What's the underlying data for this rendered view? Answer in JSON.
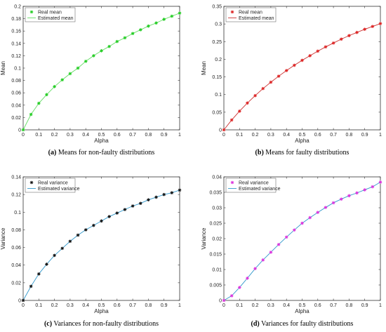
{
  "figure": {
    "panels": [
      {
        "caption_id": "(a)",
        "caption_text": "Means for non-faulty distributions",
        "legend": [
          "Real mean",
          "Estimated mean"
        ],
        "xlabel": "Alpha",
        "ylabel": "Mean",
        "marker_color": "#22cc22",
        "line_color": "#66dd66"
      },
      {
        "caption_id": "(b)",
        "caption_text": "Means for faulty distributions",
        "legend": [
          "Real mean",
          "Estimated mean"
        ],
        "xlabel": "Alpha",
        "ylabel": "Mean",
        "marker_color": "#dd2222",
        "line_color": "#cc3333"
      },
      {
        "caption_id": "(c)",
        "caption_text": "Variances for non-faulty distributions",
        "legend": [
          "Real variance",
          "Estimated variance"
        ],
        "xlabel": "Alpha",
        "ylabel": "Variance",
        "marker_color": "#111111",
        "line_color": "#3399cc"
      },
      {
        "caption_id": "(d)",
        "caption_text": "Variances for faulty distributions",
        "legend": [
          "Real variance",
          "Estimated variance"
        ],
        "xlabel": "Alpha",
        "ylabel": "Variance",
        "marker_color": "#dd33dd",
        "line_color": "#3399cc"
      }
    ]
  },
  "chart_data": [
    {
      "type": "line",
      "x": [
        0,
        0.05,
        0.1,
        0.15,
        0.2,
        0.25,
        0.3,
        0.35,
        0.4,
        0.45,
        0.5,
        0.55,
        0.6,
        0.65,
        0.7,
        0.75,
        0.8,
        0.85,
        0.9,
        0.95,
        1
      ],
      "series": [
        {
          "name": "Real mean",
          "style": "markers",
          "values": [
            0,
            0.025,
            0.043,
            0.057,
            0.07,
            0.081,
            0.091,
            0.1,
            0.111,
            0.12,
            0.128,
            0.135,
            0.143,
            0.149,
            0.156,
            0.162,
            0.168,
            0.173,
            0.179,
            0.184,
            0.189
          ]
        },
        {
          "name": "Estimated mean",
          "style": "line",
          "values": [
            0,
            0.025,
            0.043,
            0.057,
            0.07,
            0.081,
            0.091,
            0.1,
            0.111,
            0.12,
            0.128,
            0.135,
            0.143,
            0.149,
            0.156,
            0.162,
            0.168,
            0.173,
            0.179,
            0.184,
            0.189
          ]
        }
      ],
      "xlim": [
        0,
        1
      ],
      "ylim": [
        0,
        0.2
      ],
      "xticks": [
        0,
        0.1,
        0.2,
        0.3,
        0.4,
        0.5,
        0.6,
        0.7,
        0.8,
        0.9,
        1
      ],
      "yticks": [
        0,
        0.02,
        0.04,
        0.06,
        0.08,
        0.1,
        0.12,
        0.14,
        0.16,
        0.18,
        0.2
      ],
      "xlabel": "Alpha",
      "ylabel": "Mean",
      "legend_position": "top-left",
      "grid": false
    },
    {
      "type": "line",
      "x": [
        0,
        0.05,
        0.1,
        0.15,
        0.2,
        0.25,
        0.3,
        0.35,
        0.4,
        0.45,
        0.5,
        0.55,
        0.6,
        0.65,
        0.7,
        0.75,
        0.8,
        0.85,
        0.9,
        0.95,
        1
      ],
      "series": [
        {
          "name": "Real mean",
          "style": "markers",
          "values": [
            0,
            0.028,
            0.053,
            0.076,
            0.097,
            0.117,
            0.135,
            0.152,
            0.168,
            0.183,
            0.197,
            0.21,
            0.223,
            0.235,
            0.246,
            0.257,
            0.267,
            0.276,
            0.285,
            0.293,
            0.301
          ]
        },
        {
          "name": "Estimated mean",
          "style": "line",
          "values": [
            0,
            0.028,
            0.053,
            0.076,
            0.097,
            0.117,
            0.135,
            0.152,
            0.168,
            0.183,
            0.197,
            0.21,
            0.223,
            0.235,
            0.246,
            0.257,
            0.267,
            0.276,
            0.285,
            0.293,
            0.301
          ]
        }
      ],
      "xlim": [
        0,
        1
      ],
      "ylim": [
        0,
        0.35
      ],
      "xticks": [
        0,
        0.1,
        0.2,
        0.3,
        0.4,
        0.5,
        0.6,
        0.7,
        0.8,
        0.9,
        1
      ],
      "yticks": [
        0,
        0.05,
        0.1,
        0.15,
        0.2,
        0.25,
        0.3,
        0.35
      ],
      "xlabel": "Alpha",
      "ylabel": "Mean",
      "legend_position": "top-left",
      "grid": false
    },
    {
      "type": "line",
      "x": [
        0,
        0.05,
        0.1,
        0.15,
        0.2,
        0.25,
        0.3,
        0.35,
        0.4,
        0.45,
        0.5,
        0.55,
        0.6,
        0.65,
        0.7,
        0.75,
        0.8,
        0.85,
        0.9,
        0.95,
        1
      ],
      "series": [
        {
          "name": "Real variance",
          "style": "markers",
          "values": [
            0,
            0.016,
            0.03,
            0.041,
            0.051,
            0.059,
            0.067,
            0.074,
            0.08,
            0.085,
            0.09,
            0.095,
            0.099,
            0.103,
            0.107,
            0.11,
            0.114,
            0.117,
            0.12,
            0.122,
            0.125
          ]
        },
        {
          "name": "Estimated variance",
          "style": "line",
          "values": [
            0,
            0.016,
            0.03,
            0.041,
            0.051,
            0.059,
            0.067,
            0.074,
            0.08,
            0.085,
            0.09,
            0.095,
            0.099,
            0.103,
            0.107,
            0.11,
            0.114,
            0.117,
            0.12,
            0.122,
            0.125
          ]
        }
      ],
      "xlim": [
        0,
        1
      ],
      "ylim": [
        0,
        0.14
      ],
      "xticks": [
        0,
        0.1,
        0.2,
        0.3,
        0.4,
        0.5,
        0.6,
        0.7,
        0.8,
        0.9,
        1
      ],
      "yticks": [
        0,
        0.02,
        0.04,
        0.06,
        0.08,
        0.1,
        0.12,
        0.14
      ],
      "xlabel": "Alpha",
      "ylabel": "Variance",
      "legend_position": "top-left",
      "grid": false
    },
    {
      "type": "line",
      "x": [
        0,
        0.05,
        0.1,
        0.15,
        0.2,
        0.25,
        0.3,
        0.35,
        0.4,
        0.45,
        0.5,
        0.55,
        0.6,
        0.65,
        0.7,
        0.75,
        0.8,
        0.85,
        0.9,
        0.95,
        1
      ],
      "series": [
        {
          "name": "Real variance",
          "style": "markers",
          "values": [
            0,
            0.0015,
            0.0042,
            0.0072,
            0.0103,
            0.0131,
            0.0156,
            0.0181,
            0.0205,
            0.0228,
            0.025,
            0.0268,
            0.0285,
            0.0301,
            0.0316,
            0.0328,
            0.0339,
            0.0348,
            0.0358,
            0.0368,
            0.0383
          ]
        },
        {
          "name": "Estimated variance",
          "style": "line",
          "values": [
            0,
            0.0015,
            0.0042,
            0.0072,
            0.0103,
            0.0131,
            0.0156,
            0.0181,
            0.0205,
            0.0228,
            0.025,
            0.0268,
            0.0285,
            0.0301,
            0.0316,
            0.0328,
            0.0339,
            0.0348,
            0.0358,
            0.0368,
            0.0383
          ]
        }
      ],
      "xlim": [
        0,
        1
      ],
      "ylim": [
        0,
        0.04
      ],
      "xticks": [
        0,
        0.1,
        0.2,
        0.3,
        0.4,
        0.5,
        0.6,
        0.7,
        0.8,
        0.9,
        1
      ],
      "yticks": [
        0,
        0.005,
        0.01,
        0.015,
        0.02,
        0.025,
        0.03,
        0.035,
        0.04
      ],
      "xlabel": "Alpha",
      "ylabel": "Variance",
      "legend_position": "top-left",
      "grid": false
    }
  ]
}
